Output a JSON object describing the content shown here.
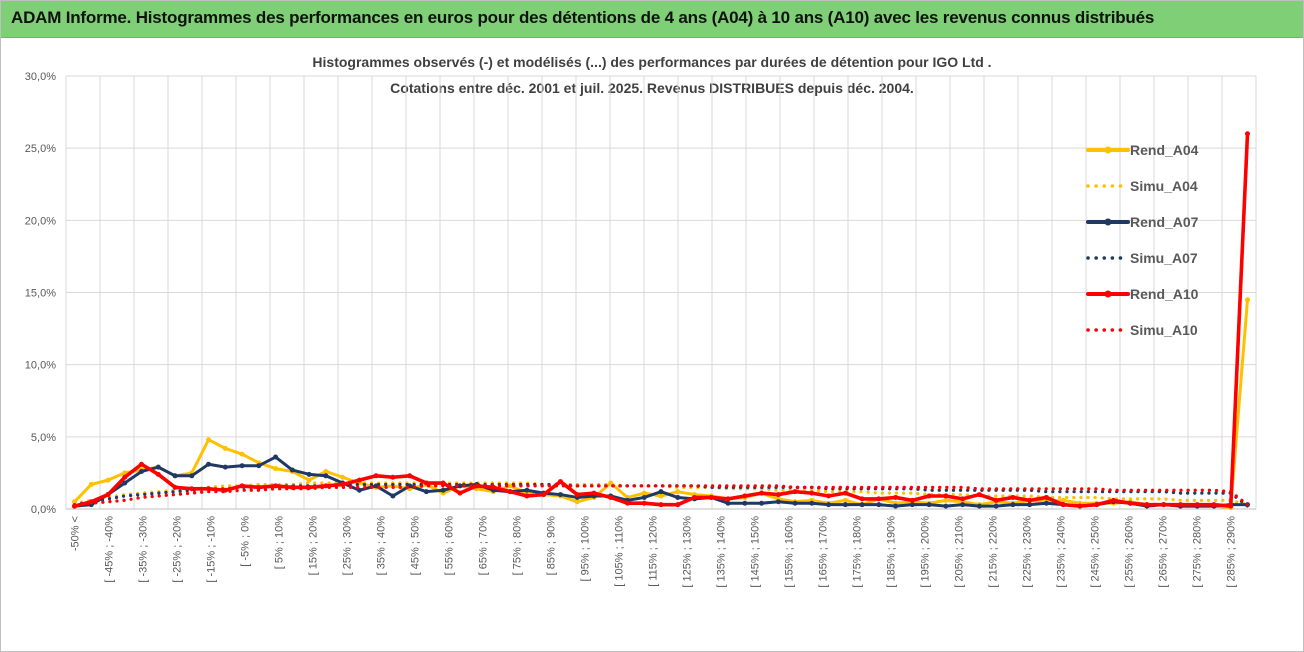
{
  "header": {
    "title": "ADAM Informe. Histogrammes des performances en euros pour des détentions de 4 ans (A04) à 10 ans (A10) avec les revenus connus distribués"
  },
  "chart_data": {
    "type": "line",
    "title_line1": "Histogrammes observés (-) et modélisés (...) des performances par durées de détention pour IGO Ltd .",
    "title_line2": "Cotations entre déc. 2001 et juil. 2025. Revenus DISTRIBUES depuis déc. 2004.",
    "ylim": [
      0,
      30
    ],
    "y_ticks": [
      "0,0%",
      "5,0%",
      "10,0%",
      "15,0%",
      "20,0%",
      "25,0%",
      "30,0%"
    ],
    "y_tick_values": [
      0,
      5,
      10,
      15,
      20,
      25,
      30
    ],
    "x_labels": [
      "-50% <",
      "[ -45% ; -40%",
      "[ -35% ; -30%",
      "[ -25% ; -20%",
      "[ -15% ; -10%",
      "[ -5% ; 0%",
      "[ 5% ; 10%",
      "[ 15% ; 20%",
      "[ 25% ; 30%",
      "[ 35% ; 40%",
      "[ 45% ; 50%",
      "[ 55% ; 60%",
      "[ 65% ; 70%",
      "[ 75% ; 80%",
      "[ 85% ; 90%",
      "[ 95% ; 100%",
      "[ 105% ; 110%",
      "[ 115% ; 120%",
      "[ 125% ; 130%",
      "[ 135% ; 140%",
      "[ 145% ; 150%",
      "[ 155% ; 160%",
      "[ 165% ; 170%",
      "[ 175% ; 180%",
      "[ 185% ; 190%",
      "[ 195% ; 200%",
      "[ 205% ; 210%",
      "[ 215% ; 220%",
      "[ 225% ; 230%",
      "[ 235% ; 240%",
      "[ 245% ; 250%",
      "[ 255% ; 260%",
      "[ 265% ; 270%",
      "[ 275% ; 280%",
      "[ 285% ; 290%"
    ],
    "n_categories": 70,
    "legend_position": "right",
    "series": [
      {
        "name": "Rend_A04",
        "style": "solid",
        "color": "#ffc000",
        "values": [
          0.5,
          1.7,
          2.0,
          2.5,
          2.7,
          2.9,
          2.3,
          2.5,
          4.8,
          4.2,
          3.8,
          3.2,
          2.8,
          2.6,
          2.0,
          2.6,
          2.2,
          1.8,
          1.5,
          1.6,
          1.4,
          1.7,
          1.1,
          1.6,
          1.4,
          1.2,
          1.6,
          1.1,
          1.0,
          0.9,
          0.5,
          0.8,
          1.8,
          0.8,
          1.1,
          0.9,
          1.2,
          1.0,
          0.9,
          0.7,
          0.8,
          1.1,
          0.7,
          0.5,
          0.6,
          0.4,
          0.6,
          0.3,
          0.7,
          0.4,
          0.5,
          0.4,
          0.6,
          0.5,
          0.3,
          0.5,
          0.4,
          0.6,
          0.5,
          0.6,
          0.4,
          0.4,
          0.4,
          0.5,
          0.3,
          0.3,
          0.2,
          0.2,
          0.2,
          0.1,
          14.5
        ]
      },
      {
        "name": "Simu_A04",
        "style": "dotted",
        "color": "#ffc000",
        "values": [
          0.4,
          0.6,
          0.8,
          1.0,
          1.1,
          1.2,
          1.3,
          1.4,
          1.5,
          1.6,
          1.6,
          1.7,
          1.7,
          1.7,
          1.8,
          1.8,
          1.8,
          1.8,
          1.8,
          1.8,
          1.8,
          1.8,
          1.8,
          1.8,
          1.8,
          1.8,
          1.8,
          1.8,
          1.7,
          1.7,
          1.7,
          1.7,
          1.7,
          1.6,
          1.6,
          1.6,
          1.5,
          1.5,
          1.5,
          1.4,
          1.4,
          1.4,
          1.3,
          1.3,
          1.3,
          1.2,
          1.2,
          1.2,
          1.1,
          1.1,
          1.1,
          1.0,
          1.0,
          1.0,
          0.9,
          0.9,
          0.9,
          0.9,
          0.8,
          0.8,
          0.8,
          0.8,
          0.7,
          0.7,
          0.7,
          0.7,
          0.6,
          0.6,
          0.6,
          0.6,
          0.3
        ]
      },
      {
        "name": "Rend_A07",
        "style": "solid",
        "color": "#1f3864",
        "values": [
          0.2,
          0.3,
          1.0,
          1.8,
          2.6,
          2.9,
          2.3,
          2.3,
          3.1,
          2.9,
          3.0,
          3.0,
          3.6,
          2.7,
          2.4,
          2.3,
          1.8,
          1.3,
          1.6,
          0.9,
          1.6,
          1.2,
          1.3,
          1.6,
          1.7,
          1.3,
          1.2,
          1.3,
          1.1,
          1.0,
          0.8,
          0.9,
          0.9,
          0.6,
          0.8,
          1.2,
          0.8,
          0.7,
          0.8,
          0.4,
          0.4,
          0.4,
          0.5,
          0.4,
          0.4,
          0.3,
          0.3,
          0.3,
          0.3,
          0.2,
          0.3,
          0.3,
          0.2,
          0.3,
          0.2,
          0.2,
          0.3,
          0.3,
          0.4,
          0.3,
          0.2,
          0.3,
          0.5,
          0.4,
          0.2,
          0.3,
          0.2,
          0.2,
          0.2,
          0.3,
          0.3
        ]
      },
      {
        "name": "Simu_A07",
        "style": "dotted",
        "color": "#1f3864",
        "values": [
          0.3,
          0.5,
          0.7,
          0.9,
          1.0,
          1.1,
          1.2,
          1.3,
          1.4,
          1.4,
          1.5,
          1.5,
          1.6,
          1.6,
          1.6,
          1.6,
          1.7,
          1.7,
          1.7,
          1.7,
          1.7,
          1.7,
          1.7,
          1.7,
          1.7,
          1.7,
          1.7,
          1.7,
          1.7,
          1.7,
          1.6,
          1.6,
          1.6,
          1.6,
          1.6,
          1.6,
          1.6,
          1.6,
          1.5,
          1.5,
          1.5,
          1.5,
          1.5,
          1.5,
          1.5,
          1.4,
          1.4,
          1.4,
          1.4,
          1.4,
          1.4,
          1.3,
          1.3,
          1.3,
          1.3,
          1.3,
          1.3,
          1.3,
          1.2,
          1.2,
          1.2,
          1.2,
          1.2,
          1.2,
          1.2,
          1.2,
          1.1,
          1.1,
          1.1,
          1.1,
          0.2
        ]
      },
      {
        "name": "Rend_A10",
        "style": "solid",
        "color": "#ff0000",
        "values": [
          0.2,
          0.5,
          1.0,
          2.2,
          3.1,
          2.4,
          1.5,
          1.4,
          1.4,
          1.3,
          1.6,
          1.5,
          1.6,
          1.5,
          1.5,
          1.6,
          1.7,
          2.0,
          2.3,
          2.2,
          2.3,
          1.8,
          1.8,
          1.1,
          1.6,
          1.5,
          1.2,
          0.9,
          1.0,
          1.9,
          1.0,
          1.1,
          0.8,
          0.4,
          0.4,
          0.3,
          0.3,
          0.8,
          0.8,
          0.7,
          0.9,
          1.1,
          1.0,
          1.2,
          1.1,
          0.9,
          1.1,
          0.7,
          0.7,
          0.8,
          0.6,
          0.9,
          0.9,
          0.7,
          1.0,
          0.6,
          0.8,
          0.6,
          0.8,
          0.3,
          0.2,
          0.3,
          0.6,
          0.4,
          0.3,
          0.3,
          0.3,
          0.3,
          0.3,
          0.2,
          26.0
        ]
      },
      {
        "name": "Simu_A10",
        "style": "dotted",
        "color": "#ff0000",
        "values": [
          0.3,
          0.4,
          0.5,
          0.6,
          0.8,
          0.9,
          1.0,
          1.1,
          1.2,
          1.2,
          1.3,
          1.3,
          1.4,
          1.4,
          1.4,
          1.5,
          1.5,
          1.5,
          1.5,
          1.5,
          1.5,
          1.6,
          1.6,
          1.6,
          1.6,
          1.6,
          1.6,
          1.6,
          1.6,
          1.6,
          1.6,
          1.6,
          1.6,
          1.6,
          1.6,
          1.6,
          1.6,
          1.6,
          1.6,
          1.6,
          1.6,
          1.6,
          1.6,
          1.5,
          1.5,
          1.5,
          1.5,
          1.5,
          1.5,
          1.5,
          1.5,
          1.5,
          1.5,
          1.5,
          1.4,
          1.4,
          1.4,
          1.4,
          1.4,
          1.4,
          1.4,
          1.4,
          1.3,
          1.3,
          1.3,
          1.3,
          1.3,
          1.3,
          1.3,
          1.2,
          0.3
        ]
      }
    ]
  }
}
